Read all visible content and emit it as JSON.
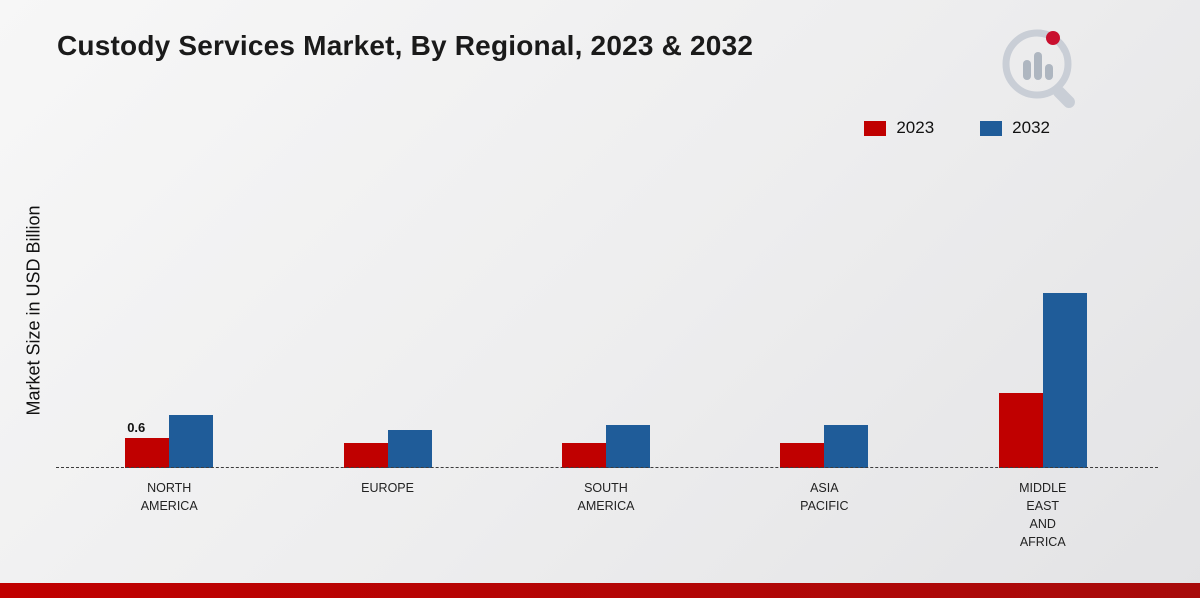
{
  "page": {
    "title": "Custody Services Market, By Regional, 2023 & 2032"
  },
  "axis": {
    "y_label": "Market Size in USD Billion"
  },
  "legend": [
    {
      "label": "2023",
      "color": "#c00000"
    },
    {
      "label": "2032",
      "color": "#1f5c99"
    }
  ],
  "colors": {
    "series_2023": "#c00000",
    "series_2032": "#1f5c99",
    "footer_stripe": "#c00000"
  },
  "chart_data": {
    "type": "bar",
    "title": "Custody Services Market, By Regional, 2023 & 2032",
    "xlabel": "",
    "ylabel": "Market Size in USD Billion",
    "legend_position": "top-right",
    "grid": false,
    "ylim": [
      0,
      4
    ],
    "categories": [
      [
        "NORTH",
        "AMERICA"
      ],
      [
        "EUROPE"
      ],
      [
        "SOUTH",
        "AMERICA"
      ],
      [
        "ASIA",
        "PACIFIC"
      ],
      [
        "MIDDLE",
        "EAST",
        "AND",
        "AFRICA"
      ]
    ],
    "series": [
      {
        "name": "2023",
        "color": "#c00000",
        "values": [
          0.6,
          0.5,
          0.5,
          0.5,
          1.5
        ]
      },
      {
        "name": "2032",
        "color": "#1f5c99",
        "values": [
          1.05,
          0.75,
          0.85,
          0.85,
          3.5
        ]
      }
    ],
    "value_labels": [
      {
        "series": 0,
        "index": 0,
        "text": "0.6"
      }
    ]
  }
}
